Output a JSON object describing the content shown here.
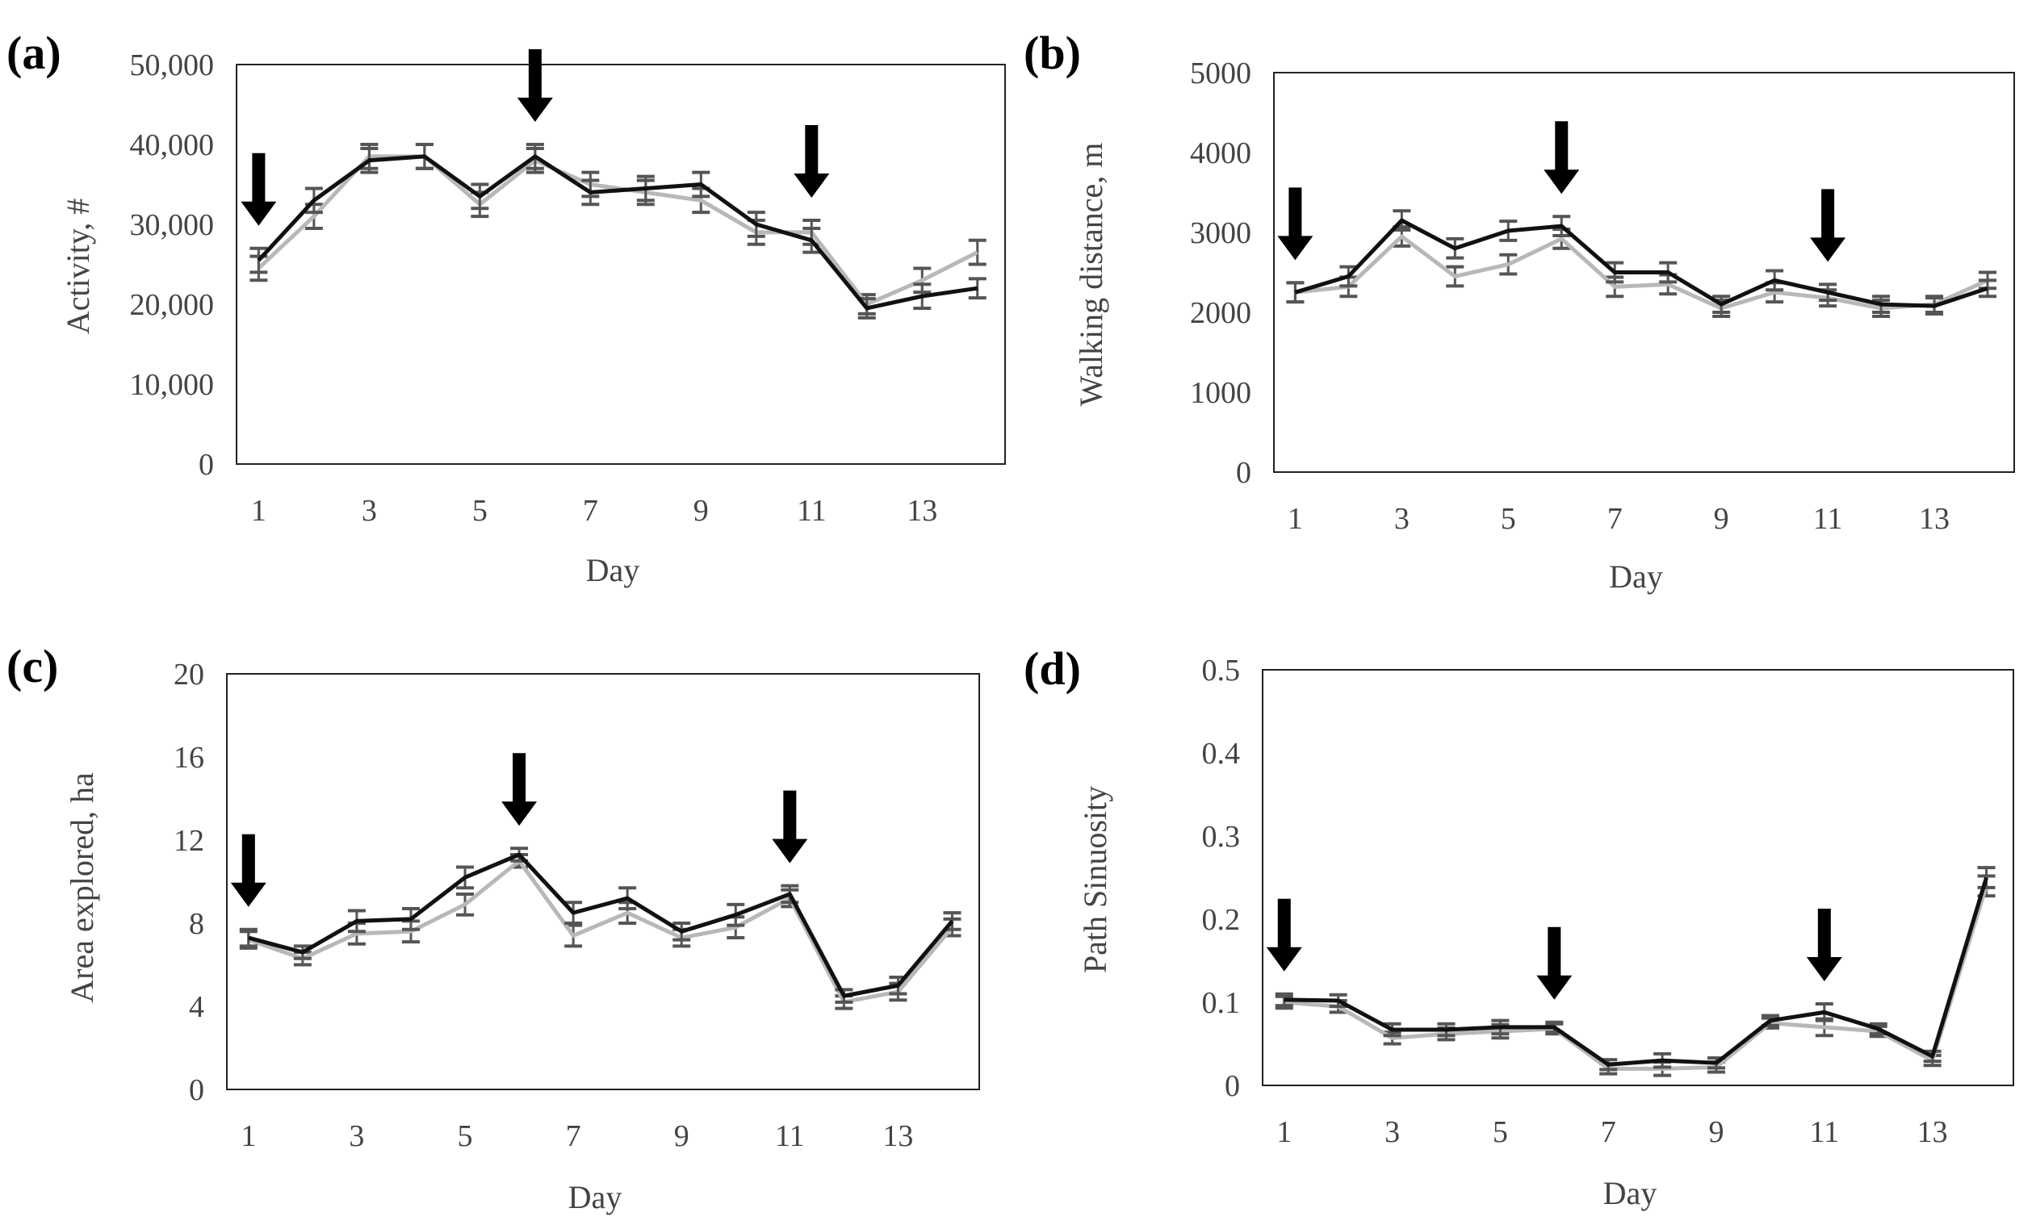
{
  "chart_data": [
    {
      "type": "line",
      "panel": "(a)",
      "xlabel": "Day",
      "ylabel": "Activity, #",
      "x": [
        1,
        2,
        3,
        4,
        5,
        6,
        7,
        8,
        9,
        10,
        11,
        12,
        13,
        14
      ],
      "x_ticks": [
        1,
        3,
        5,
        7,
        9,
        11,
        13
      ],
      "ylim": [
        0,
        50000
      ],
      "y_ticks": [
        0,
        10000,
        20000,
        30000,
        40000,
        50000
      ],
      "y_tick_labels": [
        "0",
        "10,000",
        "20,000",
        "30,000",
        "40,000",
        "50,000"
      ],
      "series": [
        {
          "name": "black series",
          "color": "#111111",
          "values": [
            25500,
            33000,
            38000,
            38500,
            33500,
            38500,
            34000,
            34500,
            35000,
            30000,
            28000,
            19500,
            21000,
            22000
          ],
          "err": [
            1500,
            1500,
            1500,
            1500,
            1500,
            1500,
            1500,
            1500,
            1500,
            1500,
            1500,
            1200,
            1500,
            1200
          ]
        },
        {
          "name": "gray series",
          "color": "#b8b8b8",
          "values": [
            24500,
            31000,
            38500,
            38500,
            32500,
            38000,
            35000,
            34000,
            33000,
            29000,
            29000,
            20000,
            23000,
            26500
          ],
          "err": [
            1500,
            1500,
            1500,
            1500,
            1500,
            1500,
            1500,
            1500,
            1500,
            1500,
            1500,
            1200,
            1500,
            1500
          ]
        }
      ],
      "arrows_at_day": [
        1,
        6,
        11
      ]
    },
    {
      "type": "line",
      "panel": "(b)",
      "xlabel": "Day",
      "ylabel": "Walking distance, m",
      "x": [
        1,
        2,
        3,
        4,
        5,
        6,
        7,
        8,
        9,
        10,
        11,
        12,
        13,
        14
      ],
      "x_ticks": [
        1,
        3,
        5,
        7,
        9,
        11,
        13
      ],
      "ylim": [
        0,
        5000
      ],
      "y_ticks": [
        0,
        1000,
        2000,
        3000,
        4000,
        5000
      ],
      "y_tick_labels": [
        "0",
        "1000",
        "2000",
        "3000",
        "4000",
        "5000"
      ],
      "series": [
        {
          "name": "black series",
          "color": "#111111",
          "values": [
            2250,
            2450,
            3150,
            2800,
            3020,
            3080,
            2500,
            2500,
            2100,
            2400,
            2250,
            2100,
            2080,
            2300
          ],
          "err": [
            120,
            120,
            120,
            120,
            120,
            120,
            120,
            120,
            100,
            120,
            100,
            100,
            100,
            100
          ]
        },
        {
          "name": "gray series",
          "color": "#b8b8b8",
          "values": [
            2250,
            2320,
            2950,
            2450,
            2600,
            2920,
            2320,
            2350,
            2050,
            2250,
            2180,
            2050,
            2100,
            2400
          ],
          "err": [
            120,
            120,
            120,
            120,
            120,
            120,
            120,
            120,
            100,
            120,
            100,
            100,
            100,
            100
          ]
        }
      ],
      "arrows_at_day": [
        1,
        6,
        11
      ]
    },
    {
      "type": "line",
      "panel": "(c)",
      "xlabel": "Day",
      "ylabel": "Area explored, ha",
      "x": [
        1,
        2,
        3,
        4,
        5,
        6,
        7,
        8,
        9,
        10,
        11,
        12,
        13,
        14
      ],
      "x_ticks": [
        1,
        3,
        5,
        7,
        9,
        11,
        13
      ],
      "ylim": [
        0,
        20
      ],
      "y_ticks": [
        0,
        4,
        8,
        12,
        16,
        20
      ],
      "y_tick_labels": [
        "0",
        "4",
        "8",
        "12",
        "16",
        "20"
      ],
      "series": [
        {
          "name": "black series",
          "color": "#111111",
          "values": [
            7.3,
            6.6,
            8.1,
            8.2,
            10.2,
            11.3,
            8.5,
            9.2,
            7.6,
            8.4,
            9.4,
            4.5,
            5.0,
            8.1
          ],
          "err": [
            0.4,
            0.3,
            0.5,
            0.5,
            0.5,
            0.3,
            0.5,
            0.5,
            0.4,
            0.5,
            0.4,
            0.3,
            0.4,
            0.4
          ]
        },
        {
          "name": "gray series",
          "color": "#b8b8b8",
          "values": [
            7.2,
            6.3,
            7.5,
            7.6,
            8.9,
            11.0,
            7.4,
            8.5,
            7.3,
            7.8,
            9.2,
            4.2,
            4.7,
            7.8
          ],
          "err": [
            0.4,
            0.3,
            0.5,
            0.5,
            0.5,
            0.3,
            0.5,
            0.5,
            0.4,
            0.5,
            0.4,
            0.3,
            0.4,
            0.4
          ]
        }
      ],
      "arrows_at_day": [
        1,
        6,
        11
      ]
    },
    {
      "type": "line",
      "panel": "(d)",
      "xlabel": "Day",
      "ylabel": "Path Sinuosity",
      "x": [
        1,
        2,
        3,
        4,
        5,
        6,
        7,
        8,
        9,
        10,
        11,
        12,
        13,
        14
      ],
      "x_ticks": [
        1,
        3,
        5,
        7,
        9,
        11,
        13
      ],
      "ylim": [
        0,
        0.5
      ],
      "y_ticks": [
        0,
        0.1,
        0.2,
        0.3,
        0.4,
        0.5
      ],
      "y_tick_labels": [
        "0",
        "0.1",
        "0.2",
        "0.3",
        "0.4",
        "0.5"
      ],
      "series": [
        {
          "name": "black series",
          "color": "#111111",
          "values": [
            0.103,
            0.102,
            0.067,
            0.067,
            0.07,
            0.07,
            0.025,
            0.03,
            0.027,
            0.078,
            0.088,
            0.068,
            0.035,
            0.25
          ],
          "err": [
            0.007,
            0.007,
            0.007,
            0.007,
            0.008,
            0.006,
            0.006,
            0.008,
            0.006,
            0.006,
            0.01,
            0.006,
            0.006,
            0.012
          ]
        },
        {
          "name": "gray series",
          "color": "#b8b8b8",
          "values": [
            0.1,
            0.095,
            0.057,
            0.062,
            0.065,
            0.068,
            0.02,
            0.02,
            0.022,
            0.075,
            0.07,
            0.065,
            0.03,
            0.24
          ],
          "err": [
            0.007,
            0.007,
            0.007,
            0.007,
            0.008,
            0.006,
            0.006,
            0.008,
            0.006,
            0.006,
            0.01,
            0.006,
            0.006,
            0.012
          ]
        }
      ],
      "arrows_at_day": [
        1,
        6,
        11
      ]
    }
  ]
}
